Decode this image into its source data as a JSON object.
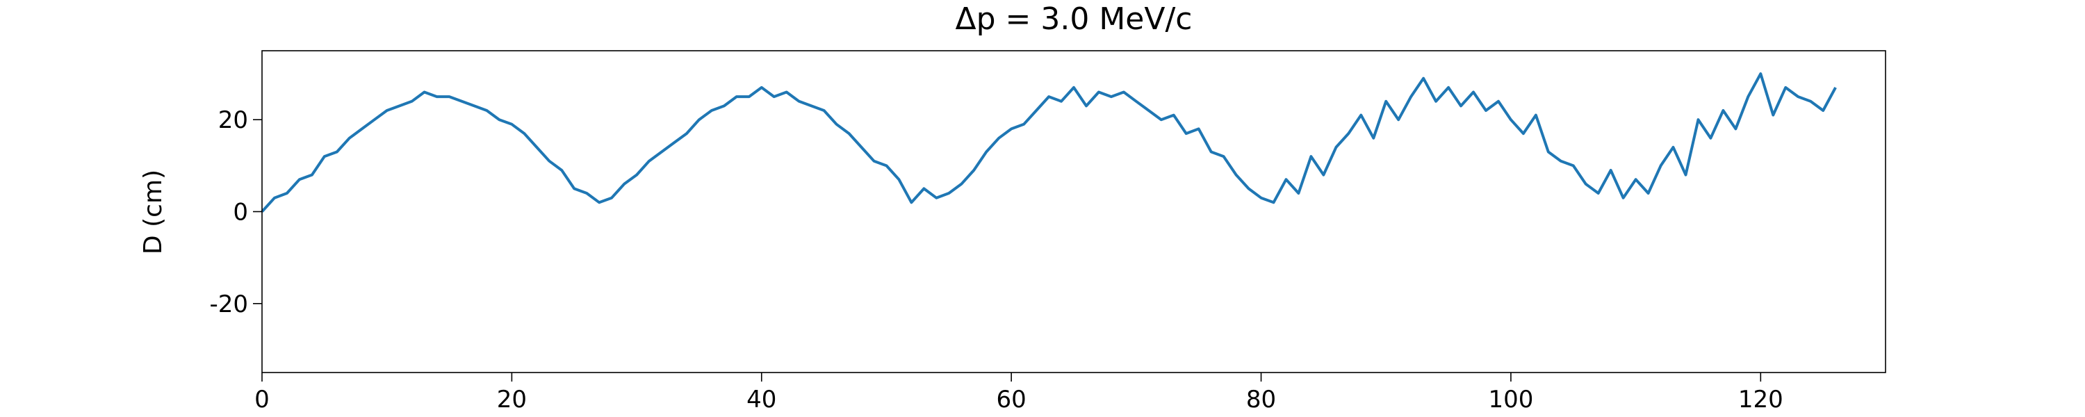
{
  "chart_data": {
    "type": "line",
    "title": "Δp = 3.0 MeV/c",
    "y_label": "D (cm)",
    "x": [
      0,
      1,
      2,
      3,
      4,
      5,
      6,
      7,
      8,
      9,
      10,
      11,
      12,
      13,
      14,
      15,
      16,
      17,
      18,
      19,
      20,
      21,
      22,
      23,
      24,
      25,
      26,
      27,
      28,
      29,
      30,
      31,
      32,
      33,
      34,
      35,
      36,
      37,
      38,
      39,
      40,
      41,
      42,
      43,
      44,
      45,
      46,
      47,
      48,
      49,
      50,
      51,
      52,
      53,
      54,
      55,
      56,
      57,
      58,
      59,
      60,
      61,
      62,
      63,
      64,
      65,
      66,
      67,
      68,
      69,
      70,
      71,
      72,
      73,
      74,
      75,
      76,
      77,
      78,
      79,
      80,
      81,
      82,
      83,
      84,
      85,
      86,
      87,
      88,
      89,
      90,
      91,
      92,
      93,
      94,
      95,
      96,
      97,
      98,
      99,
      100,
      101,
      102,
      103,
      104,
      105,
      106,
      107,
      108,
      109,
      110,
      111,
      112,
      113,
      114,
      115,
      116,
      117,
      118,
      119,
      120,
      121,
      122,
      123,
      124,
      125,
      126
    ],
    "series": [
      {
        "name": "D",
        "color": "#1f77b4",
        "values": [
          0,
          3,
          4,
          7,
          8,
          12,
          13,
          16,
          18,
          20,
          22,
          23,
          24,
          26,
          25,
          25,
          24,
          23,
          22,
          20,
          19,
          17,
          14,
          11,
          9,
          5,
          4,
          2,
          3,
          6,
          8,
          11,
          13,
          15,
          17,
          20,
          22,
          23,
          25,
          25,
          27,
          25,
          26,
          24,
          23,
          22,
          19,
          17,
          14,
          11,
          10,
          7,
          2,
          5,
          3,
          4,
          6,
          9,
          13,
          16,
          18,
          19,
          22,
          25,
          24,
          27,
          23,
          26,
          25,
          26,
          24,
          22,
          20,
          21,
          17,
          18,
          13,
          12,
          8,
          5,
          3,
          2,
          7,
          4,
          12,
          8,
          14,
          17,
          21,
          16,
          24,
          20,
          25,
          29,
          24,
          27,
          23,
          26,
          22,
          24,
          20,
          17,
          21,
          13,
          11,
          10,
          6,
          4,
          9,
          3,
          7,
          4,
          10,
          14,
          8,
          20,
          16,
          22,
          18,
          25,
          30,
          21,
          27,
          25,
          24,
          22,
          27
        ]
      }
    ],
    "xlim": [
      0,
      130
    ],
    "ylim": [
      -35,
      35
    ],
    "xticks": [
      0,
      20,
      40,
      60,
      80,
      100,
      120
    ],
    "yticks": [
      -20,
      0,
      20
    ],
    "grid": false
  }
}
